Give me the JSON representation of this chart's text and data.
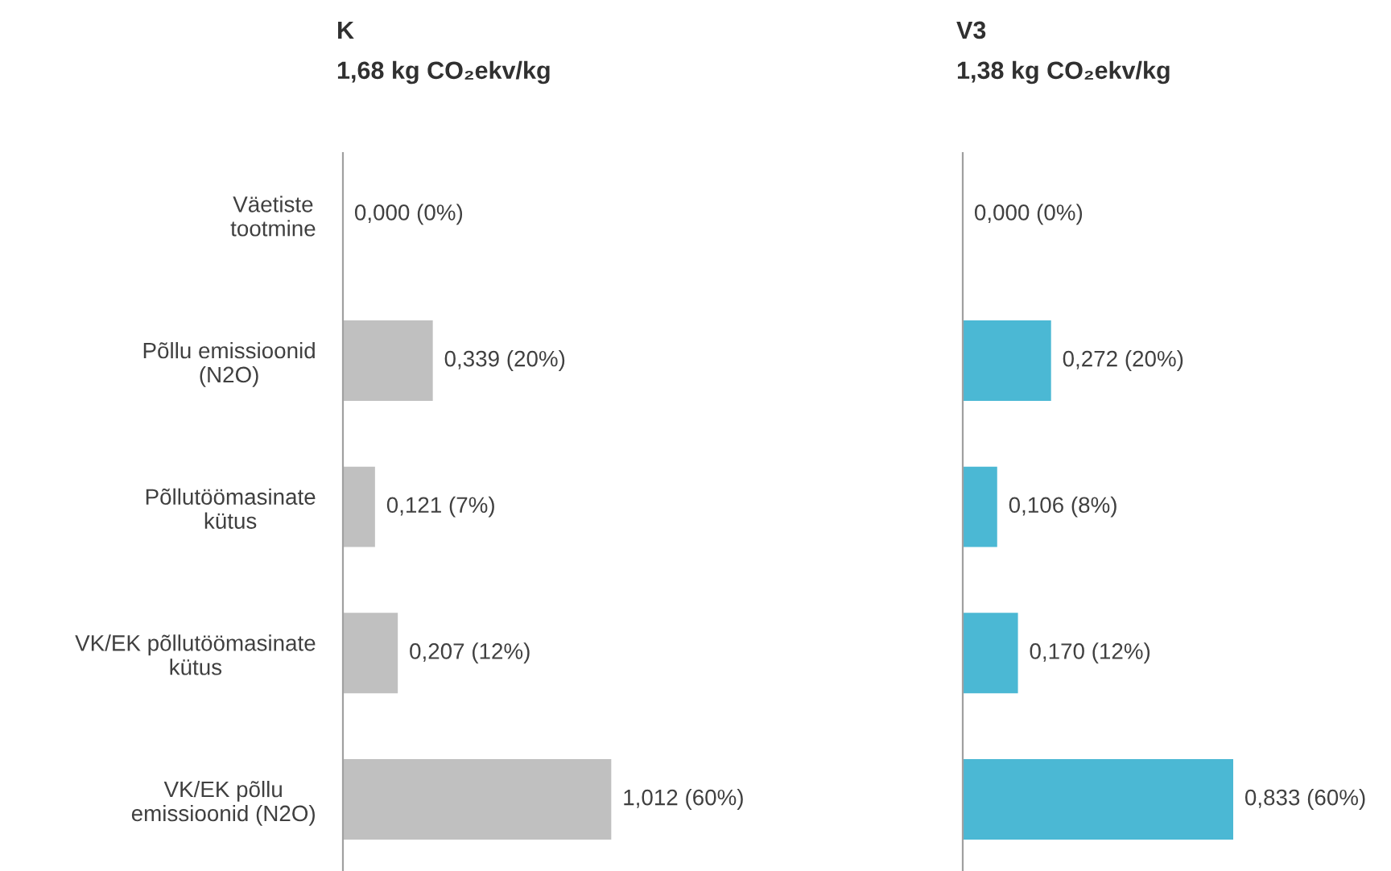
{
  "chart_data": [
    {
      "type": "bar",
      "orientation": "horizontal",
      "title": "K",
      "subtitle": "1,68 kg CO₂ekv/kg",
      "categories": [
        "Väetiste\ntootmine",
        "Põllu emissioonid\n(N2O)",
        "Põllutöömasinate\nkütus",
        "VK/EK põllutöömasinate\nkütus",
        "VK/EK põllu\nemissioonid (N2O)"
      ],
      "values": [
        0.0,
        0.339,
        0.121,
        0.207,
        1.012
      ],
      "color": "#c0c0c0",
      "value_labels": [
        "0,000 (0%)",
        "0,339 (20%)",
        "0,121 (7%)",
        "0,207 (12%)",
        "1,012 (60%)"
      ],
      "tick_labels": "y",
      "grid": false,
      "legend": false
    },
    {
      "type": "bar",
      "orientation": "horizontal",
      "title": "V3",
      "subtitle": "1,38 kg CO₂ekv/kg",
      "categories": [
        null,
        null,
        null,
        null,
        null
      ],
      "values": [
        0.0,
        0.272,
        0.106,
        0.17,
        0.833
      ],
      "color": "#4bb8d4",
      "value_labels": [
        "0,000 (0%)",
        "0,272 (20%)",
        "0,106 (8%)",
        "0,170 (12%)",
        "0,833 (60%)"
      ],
      "tick_labels": false,
      "grid": false,
      "legend": false
    }
  ]
}
